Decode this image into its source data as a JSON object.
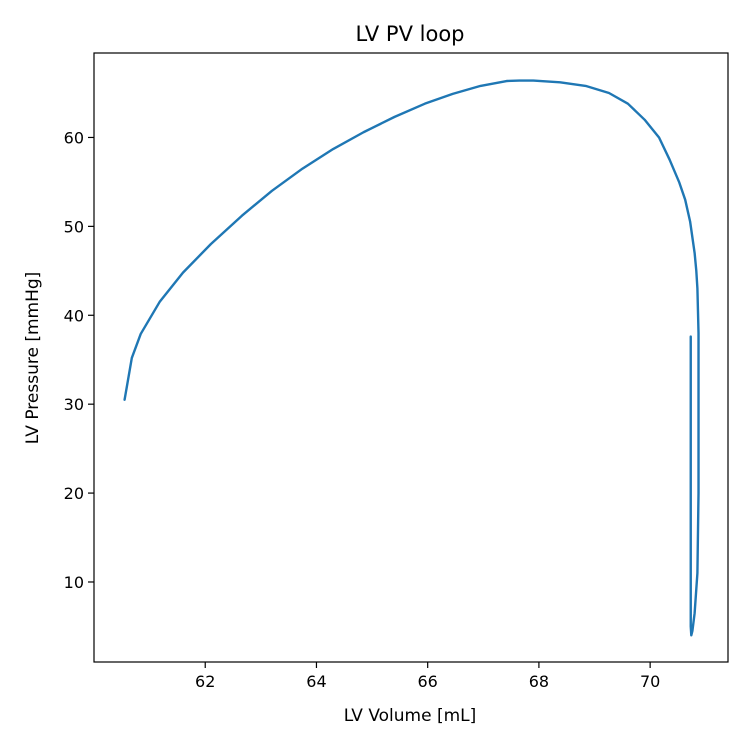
{
  "chart_data": {
    "type": "line",
    "title": "LV PV loop",
    "xlabel": "LV Volume [mL]",
    "ylabel": "LV Pressure [mmHg]",
    "xlim": [
      60.0,
      71.4
    ],
    "ylim": [
      1.0,
      69.5
    ],
    "xticks": [
      62,
      64,
      66,
      68,
      70
    ],
    "yticks": [
      10,
      20,
      30,
      40,
      50,
      60
    ],
    "grid": false,
    "series": [
      {
        "color": "#1f77b4",
        "x": [
          70.73,
          70.73,
          70.73,
          70.73,
          70.73,
          70.74,
          70.76,
          70.8,
          70.85,
          70.87,
          70.87,
          70.87,
          70.87,
          70.86,
          70.85,
          70.83,
          70.8,
          70.72,
          70.63,
          70.52,
          70.35,
          70.16,
          69.9,
          69.6,
          69.26,
          68.84,
          68.38,
          67.9,
          67.65,
          67.42,
          66.95,
          66.45,
          65.95,
          65.4,
          64.85,
          64.3,
          63.75,
          63.2,
          62.66,
          62.1,
          61.6,
          61.18,
          60.84,
          60.68,
          60.55
        ],
        "y": [
          37.6,
          30.0,
          20.0,
          10.0,
          5.0,
          4.0,
          4.5,
          6.5,
          11.0,
          20.0,
          30.0,
          35.0,
          38.0,
          40.5,
          43.0,
          45.0,
          47.0,
          50.5,
          53.0,
          55.0,
          57.5,
          60.0,
          62.0,
          63.8,
          65.0,
          65.8,
          66.2,
          66.4,
          66.4,
          66.35,
          65.8,
          64.9,
          63.8,
          62.3,
          60.6,
          58.7,
          56.5,
          54.0,
          51.2,
          48.0,
          44.8,
          41.5,
          37.9,
          35.2,
          30.5
        ]
      }
    ]
  }
}
